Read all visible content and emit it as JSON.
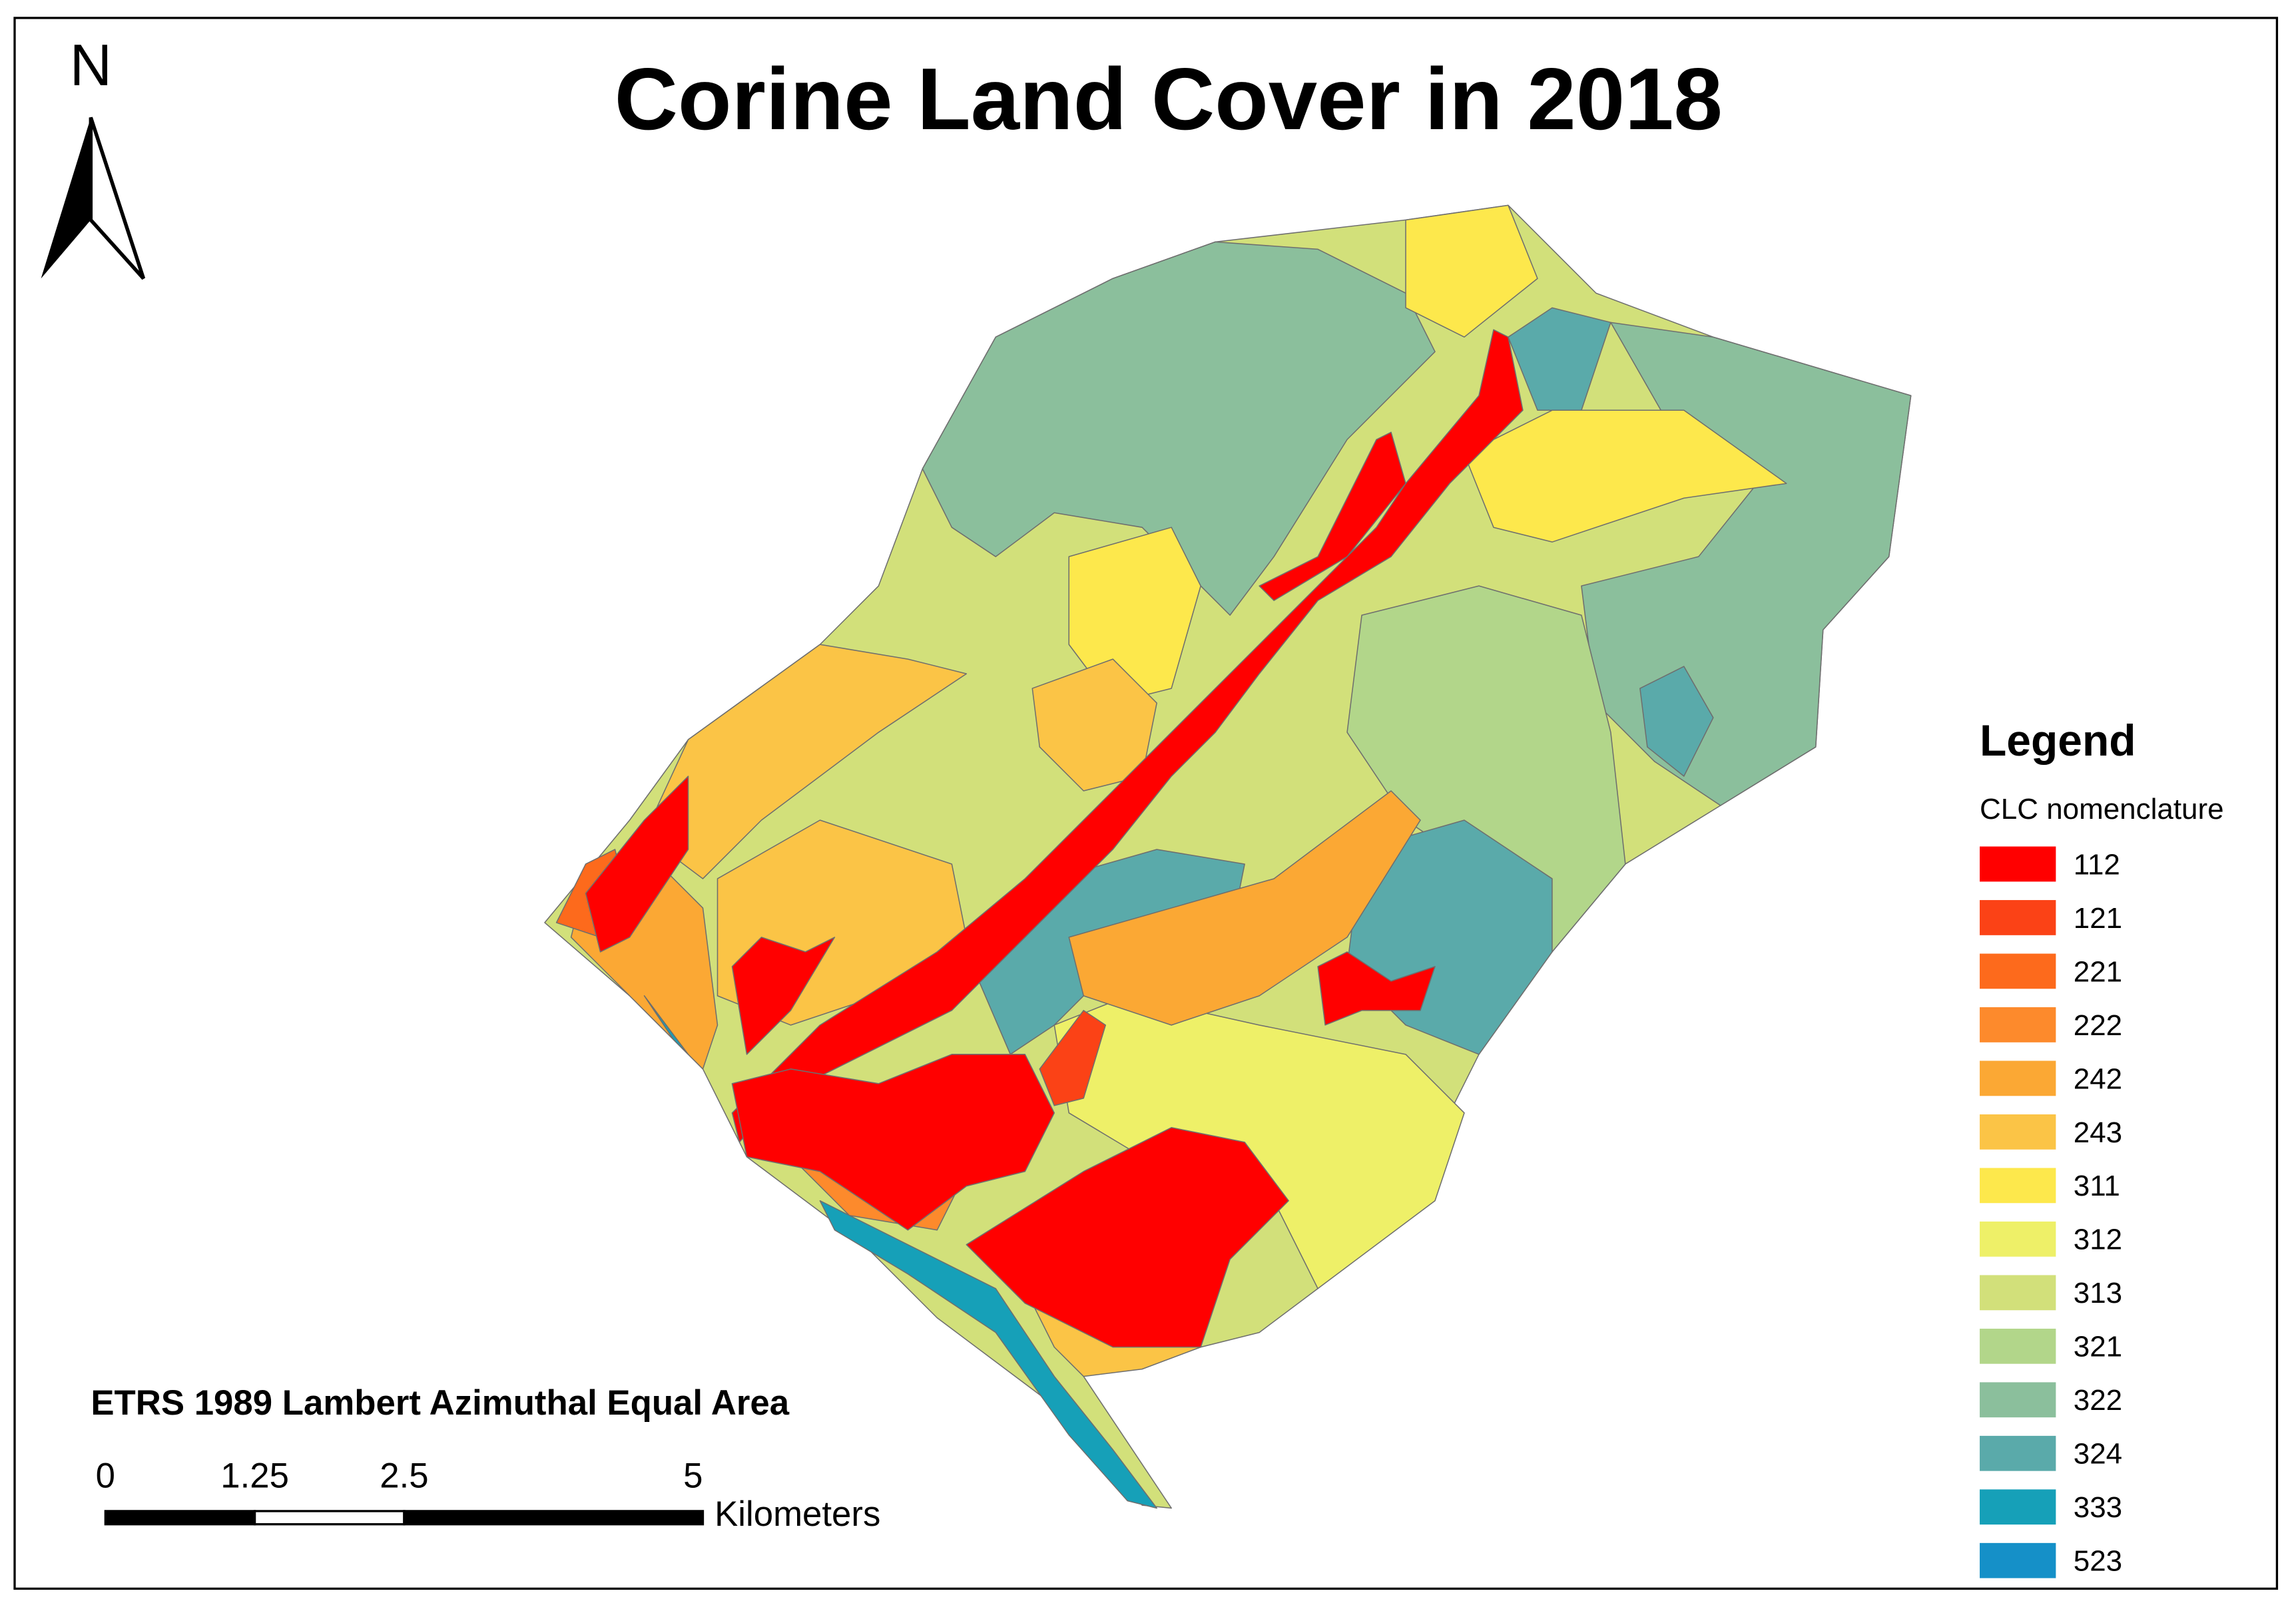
{
  "title": "Corine Land Cover in 2018",
  "north_arrow": {
    "label": "N"
  },
  "legend": {
    "title": "Legend",
    "subtitle": "CLC nomenclature",
    "items": [
      {
        "label": "112",
        "color": "#ff0000"
      },
      {
        "label": "121",
        "color": "#fb4216"
      },
      {
        "label": "221",
        "color": "#fd6a1c"
      },
      {
        "label": "222",
        "color": "#fd8a2c"
      },
      {
        "label": "242",
        "color": "#fba834"
      },
      {
        "label": "243",
        "color": "#fbc446"
      },
      {
        "label": "311",
        "color": "#fde84c"
      },
      {
        "label": "312",
        "color": "#eef068"
      },
      {
        "label": "313",
        "color": "#d2e07a"
      },
      {
        "label": "321",
        "color": "#b2d68a"
      },
      {
        "label": "322",
        "color": "#8bbf9c"
      },
      {
        "label": "324",
        "color": "#5aaaaa"
      },
      {
        "label": "333",
        "color": "#16a0b8"
      },
      {
        "label": "523",
        "color": "#1590c8"
      }
    ]
  },
  "projection": "ETRS 1989 Lambert Azimuthal Equal Area",
  "scale_bar": {
    "ticks": [
      0,
      1.25,
      2.5,
      5
    ],
    "unit": "Kilometers"
  }
}
